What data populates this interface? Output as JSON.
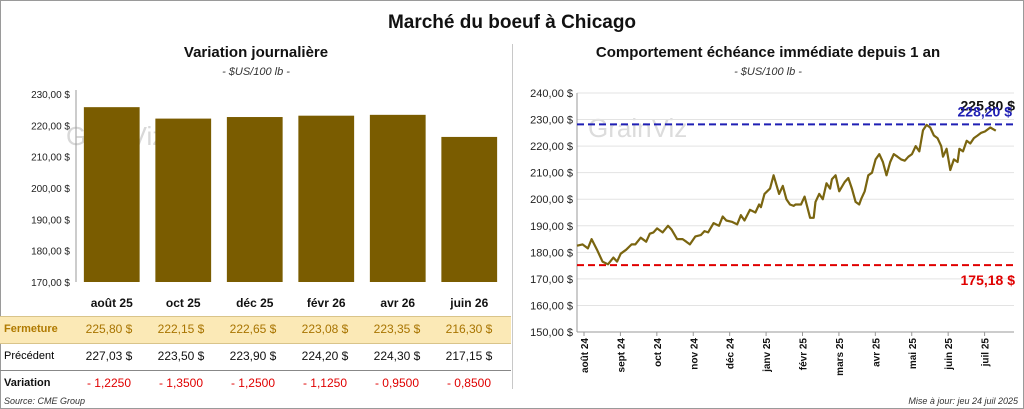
{
  "title": "Marché du boeuf à Chicago",
  "left": {
    "title": "Variation journalière",
    "unit": "- $US/100 lb -",
    "watermark": "GrainViz"
  },
  "right": {
    "title": "Comportement échéance immédiate depuis 1 an",
    "unit": "- $US/100 lb -",
    "watermark": "GrainViz"
  },
  "table": {
    "rows": [
      {
        "label": "Fermeture",
        "values": [
          "225,80  $",
          "222,15  $",
          "222,65  $",
          "223,08  $",
          "223,35  $",
          "216,30  $"
        ]
      },
      {
        "label": "Précédent",
        "values": [
          "227,03  $",
          "223,50  $",
          "223,90  $",
          "224,20  $",
          "224,30  $",
          "217,15  $"
        ]
      },
      {
        "label": "Variation",
        "values": [
          "- 1,2250",
          "- 1,3500",
          "- 1,2500",
          "- 1,1250",
          "- 0,9500",
          "- 0,8500"
        ]
      }
    ]
  },
  "footer": {
    "source": "Source: CME Group",
    "updated": "Mise à jour: jeu 24 juil 2025"
  },
  "colors": {
    "bar": "#7a5c00",
    "line": "#7a6510",
    "max_line": "#1f1fb4",
    "min_line": "#e00000",
    "max_label": "#1f1fb4",
    "min_label": "#e00000"
  },
  "chart_data": [
    {
      "type": "bar",
      "title": "Variation journalière",
      "subtitle": "- $US/100 lb -",
      "categories": [
        "août 25",
        "oct 25",
        "déc 25",
        "févr 26",
        "avr 26",
        "juin 26"
      ],
      "values": [
        225.8,
        222.15,
        222.65,
        223.08,
        223.35,
        216.3
      ],
      "ylim": [
        170,
        230
      ],
      "yticks": [
        "170,00 $",
        "180,00 $",
        "190,00 $",
        "200,00 $",
        "210,00 $",
        "220,00 $",
        "230,00 $"
      ],
      "ytick_values": [
        170,
        180,
        190,
        200,
        210,
        220,
        230
      ],
      "grid": false
    },
    {
      "type": "line",
      "title": "Comportement échéance immédiate depuis 1 an",
      "subtitle": "- $US/100 lb -",
      "xticks": [
        "août 24",
        "sept 24",
        "oct 24",
        "nov 24",
        "déc 24",
        "janv 25",
        "févr 25",
        "mars 25",
        "avr 25",
        "mai 25",
        "juin 25",
        "juil 25"
      ],
      "ylim": [
        150,
        240
      ],
      "yticks": [
        "150,00 $",
        "160,00 $",
        "170,00 $",
        "180,00 $",
        "190,00 $",
        "200,00 $",
        "210,00 $",
        "220,00 $",
        "230,00 $",
        "240,00 $"
      ],
      "ytick_values": [
        150,
        160,
        170,
        180,
        190,
        200,
        210,
        220,
        230,
        240
      ],
      "grid": true,
      "max_value": 228.2,
      "max_label": "228,20 $",
      "last_label": "225,80 $",
      "min_value": 175.18,
      "min_label": "175,18 $",
      "series": [
        {
          "x": [
            0,
            0.15,
            0.3,
            0.4,
            0.55,
            0.7,
            0.85,
            1,
            1.1,
            1.2,
            1.35,
            1.5,
            1.6,
            1.75,
            1.9,
            2,
            2.1,
            2.2,
            2.35,
            2.5,
            2.6,
            2.75,
            2.9,
            3,
            3.1,
            3.25,
            3.4,
            3.5,
            3.6,
            3.75,
            3.9,
            4,
            4.1,
            4.25,
            4.4,
            4.5,
            4.6,
            4.75,
            4.9,
            5,
            5.05,
            5.15,
            5.3,
            5.4,
            5.55,
            5.65,
            5.75,
            5.85,
            5.95,
            6,
            6.15,
            6.25,
            6.4,
            6.5,
            6.55,
            6.65,
            6.75,
            6.85,
            6.95,
            7,
            7.1,
            7.2,
            7.35,
            7.45,
            7.55,
            7.65,
            7.75,
            7.8,
            7.9,
            8,
            8.1,
            8.2,
            8.3,
            8.4,
            8.5,
            8.6,
            8.7,
            8.8,
            8.9,
            9,
            9.1,
            9.2,
            9.3,
            9.4,
            9.5,
            9.6,
            9.7,
            9.8,
            9.9,
            10,
            10.05,
            10.15,
            10.25,
            10.35,
            10.45,
            10.5,
            10.6,
            10.7,
            10.8,
            10.9,
            11,
            11.1,
            11.2,
            11.35,
            11.5
          ],
          "values": [
            182.5,
            183,
            181.5,
            185,
            181,
            176.5,
            175.5,
            178,
            176.5,
            179.5,
            181,
            183,
            183,
            185.5,
            184,
            187,
            187.5,
            189,
            187.5,
            190,
            188.5,
            185,
            185,
            184,
            183,
            186,
            186.5,
            188,
            187.5,
            191,
            190,
            193.5,
            192,
            191.5,
            190.5,
            194,
            192,
            196,
            195,
            198,
            197,
            202,
            204,
            209,
            202,
            205,
            200,
            198,
            197.5,
            198,
            198,
            201,
            193,
            193,
            199,
            202,
            200,
            206,
            204,
            207.5,
            209,
            203,
            206.5,
            208,
            204,
            199,
            198,
            200,
            203,
            209,
            210,
            215,
            217,
            214,
            209,
            214,
            217,
            216,
            215,
            214.5,
            216,
            217,
            220,
            218,
            226,
            228,
            227,
            224,
            223,
            220,
            216,
            219,
            211,
            215,
            214,
            219,
            218,
            222,
            221,
            223,
            224,
            225,
            225.5,
            227,
            225.8
          ]
        }
      ]
    }
  ]
}
